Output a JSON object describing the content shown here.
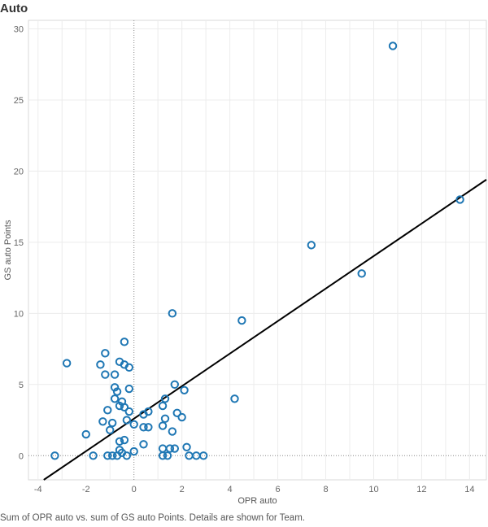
{
  "sheet": {
    "title": "Auto"
  },
  "caption": "Sum of OPR auto vs. sum of GS auto Points.  Details are shown for Team.",
  "colors": {
    "marker": "#1f77b4",
    "trend": "#000000",
    "grid": "#ececec",
    "zero": "#888888"
  },
  "chart_data": {
    "type": "scatter",
    "xlabel": "OPR auto",
    "ylabel": "GS auto Points",
    "xlim": [
      -4.4,
      14.7
    ],
    "ylim": [
      -1.7,
      30.6
    ],
    "xticks": [
      -4,
      -2,
      0,
      2,
      4,
      6,
      8,
      10,
      12,
      14
    ],
    "yticks": [
      0,
      5,
      10,
      15,
      20,
      25,
      30
    ],
    "grid": true,
    "marker": "open-circle",
    "trend_line": {
      "slope": 1.143,
      "intercept": 2.6
    },
    "points": [
      {
        "x": -3.3,
        "y": 0
      },
      {
        "x": -2.8,
        "y": 6.5
      },
      {
        "x": -2.0,
        "y": 1.5
      },
      {
        "x": -1.7,
        "y": 0
      },
      {
        "x": -1.4,
        "y": 6.4
      },
      {
        "x": -1.3,
        "y": 2.4
      },
      {
        "x": -1.2,
        "y": 7.2
      },
      {
        "x": -1.2,
        "y": 5.7
      },
      {
        "x": -1.1,
        "y": 0
      },
      {
        "x": -1.1,
        "y": 3.2
      },
      {
        "x": -1.0,
        "y": 1.8
      },
      {
        "x": -0.9,
        "y": 2.3
      },
      {
        "x": -0.9,
        "y": 0
      },
      {
        "x": -0.8,
        "y": 4.8
      },
      {
        "x": -0.8,
        "y": 4.0
      },
      {
        "x": -0.8,
        "y": 5.7
      },
      {
        "x": -0.7,
        "y": 4.5
      },
      {
        "x": -0.7,
        "y": 0
      },
      {
        "x": -0.6,
        "y": 6.6
      },
      {
        "x": -0.6,
        "y": 3.5
      },
      {
        "x": -0.6,
        "y": 1.0
      },
      {
        "x": -0.6,
        "y": 0.4
      },
      {
        "x": -0.5,
        "y": 3.8
      },
      {
        "x": -0.5,
        "y": 0.2
      },
      {
        "x": -0.4,
        "y": 8.0
      },
      {
        "x": -0.4,
        "y": 6.4
      },
      {
        "x": -0.4,
        "y": 3.4
      },
      {
        "x": -0.4,
        "y": 1.1
      },
      {
        "x": -0.3,
        "y": 2.5
      },
      {
        "x": -0.3,
        "y": 0
      },
      {
        "x": -0.2,
        "y": 6.2
      },
      {
        "x": -0.2,
        "y": 4.7
      },
      {
        "x": -0.2,
        "y": 3.1
      },
      {
        "x": 0.0,
        "y": 2.2
      },
      {
        "x": 0.0,
        "y": 0.3
      },
      {
        "x": 0.4,
        "y": 2.9
      },
      {
        "x": 0.4,
        "y": 2.0
      },
      {
        "x": 0.4,
        "y": 0.8
      },
      {
        "x": 0.6,
        "y": 3.1
      },
      {
        "x": 0.6,
        "y": 2.0
      },
      {
        "x": 1.2,
        "y": 3.5
      },
      {
        "x": 1.2,
        "y": 2.1
      },
      {
        "x": 1.2,
        "y": 0.5
      },
      {
        "x": 1.2,
        "y": 0
      },
      {
        "x": 1.3,
        "y": 4.0
      },
      {
        "x": 1.3,
        "y": 2.6
      },
      {
        "x": 1.4,
        "y": 0
      },
      {
        "x": 1.5,
        "y": 0.5
      },
      {
        "x": 1.6,
        "y": 10.0
      },
      {
        "x": 1.6,
        "y": 1.7
      },
      {
        "x": 1.7,
        "y": 5.0
      },
      {
        "x": 1.7,
        "y": 0.5
      },
      {
        "x": 1.8,
        "y": 3.0
      },
      {
        "x": 2.0,
        "y": 2.7
      },
      {
        "x": 2.1,
        "y": 4.6
      },
      {
        "x": 2.2,
        "y": 0.6
      },
      {
        "x": 2.3,
        "y": 0
      },
      {
        "x": 2.6,
        "y": 0
      },
      {
        "x": 2.9,
        "y": 0
      },
      {
        "x": 4.2,
        "y": 4.0
      },
      {
        "x": 4.5,
        "y": 9.5
      },
      {
        "x": 7.4,
        "y": 14.8
      },
      {
        "x": 9.5,
        "y": 12.8
      },
      {
        "x": 10.8,
        "y": 28.8
      },
      {
        "x": 13.6,
        "y": 18.0
      }
    ]
  }
}
